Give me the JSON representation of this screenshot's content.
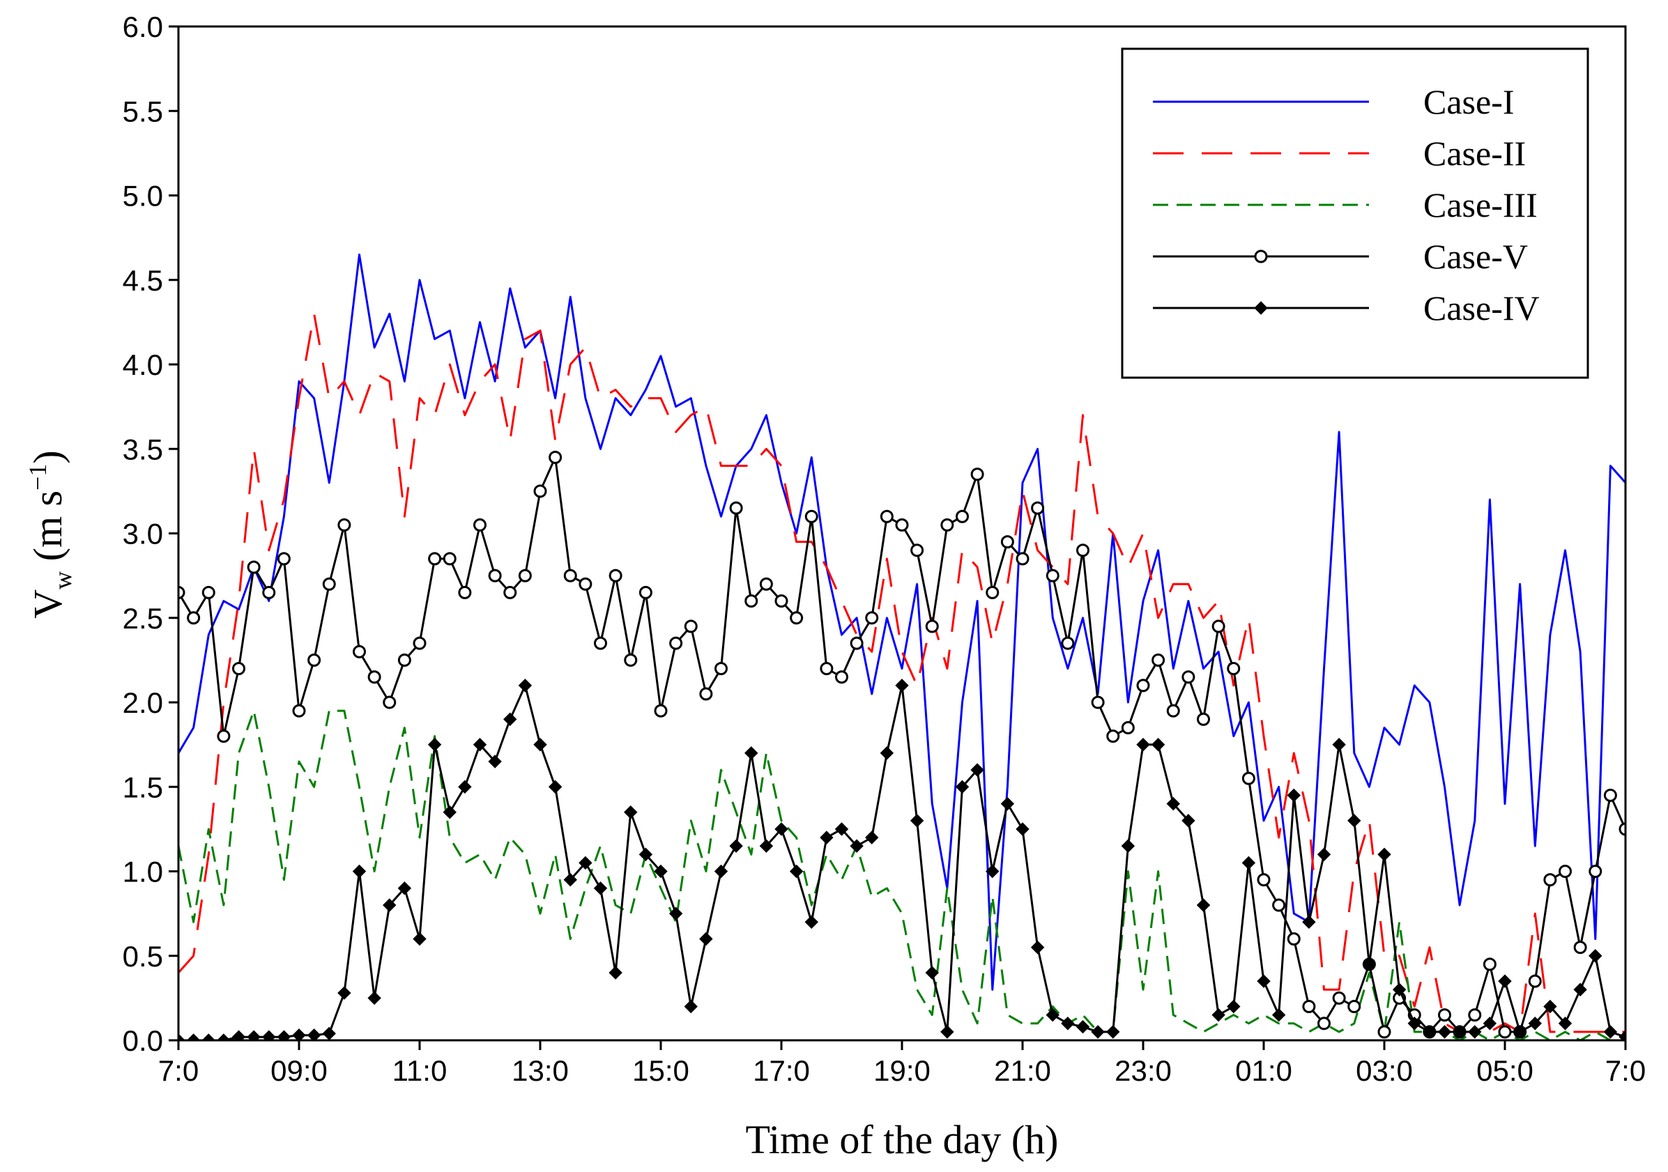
{
  "chart_data": {
    "type": "line",
    "xlabel": "Time of the day (h)",
    "ylabel": {
      "main": "V",
      "sub": "w",
      "unit": " (m s",
      "sup": "−1",
      "close": ")"
    },
    "xlim": [
      7,
      31
    ],
    "ylim": [
      0,
      6
    ],
    "xticks": [
      {
        "value": 7,
        "label": "7:0"
      },
      {
        "value": 9,
        "label": "09:0"
      },
      {
        "value": 11,
        "label": "11:0"
      },
      {
        "value": 13,
        "label": "13:0"
      },
      {
        "value": 15,
        "label": "15:0"
      },
      {
        "value": 17,
        "label": "17:0"
      },
      {
        "value": 19,
        "label": "19:0"
      },
      {
        "value": 21,
        "label": "21:0"
      },
      {
        "value": 23,
        "label": "23:0"
      },
      {
        "value": 25,
        "label": "01:0"
      },
      {
        "value": 27,
        "label": "03:0"
      },
      {
        "value": 29,
        "label": "05:0"
      },
      {
        "value": 31,
        "label": "7:0"
      }
    ],
    "yticks": [
      {
        "value": 0,
        "label": "0.0"
      },
      0.5,
      {
        "value": 1,
        "label": "1.0"
      },
      1.5,
      {
        "value": 2,
        "label": "2.0"
      },
      2.5,
      {
        "value": 3,
        "label": "3.0"
      },
      3.5,
      {
        "value": 4,
        "label": "4.0"
      },
      4.5,
      {
        "value": 5,
        "label": "5.0"
      },
      5.5,
      {
        "value": 6,
        "label": "6.0"
      }
    ],
    "grid": false,
    "legend": "upper-right",
    "x": [
      7,
      7.25,
      7.5,
      7.75,
      8,
      8.25,
      8.5,
      8.75,
      9,
      9.25,
      9.5,
      9.75,
      10,
      10.25,
      10.5,
      10.75,
      11,
      11.25,
      11.5,
      11.75,
      12,
      12.25,
      12.5,
      12.75,
      13,
      13.25,
      13.5,
      13.75,
      14,
      14.25,
      14.5,
      14.75,
      15,
      15.25,
      15.5,
      15.75,
      16,
      16.25,
      16.5,
      16.75,
      17,
      17.25,
      17.5,
      17.75,
      18,
      18.25,
      18.5,
      18.75,
      19,
      19.25,
      19.5,
      19.75,
      20,
      20.25,
      20.5,
      20.75,
      21,
      21.25,
      21.5,
      21.75,
      22,
      22.25,
      22.5,
      22.75,
      23,
      23.25,
      23.5,
      23.75,
      24,
      24.25,
      24.5,
      24.75,
      25,
      25.25,
      25.5,
      25.75,
      26,
      26.25,
      26.5,
      26.75,
      27,
      27.25,
      27.5,
      27.75,
      28,
      28.25,
      28.5,
      28.75,
      29,
      29.25,
      29.5,
      29.75,
      30,
      30.25,
      30.5,
      30.75,
      31
    ],
    "series": [
      {
        "name": "Case-I",
        "color": "#0000ff",
        "line_style": "solid",
        "marker": "none",
        "values": [
          1.7,
          1.85,
          2.4,
          2.6,
          2.55,
          2.8,
          2.6,
          3.1,
          3.9,
          3.8,
          3.3,
          3.9,
          4.65,
          4.1,
          4.3,
          3.9,
          4.5,
          4.15,
          4.2,
          3.8,
          4.25,
          3.9,
          4.45,
          4.1,
          4.2,
          3.8,
          4.4,
          3.8,
          3.5,
          3.8,
          3.7,
          3.85,
          4.05,
          3.75,
          3.8,
          3.4,
          3.1,
          3.4,
          3.5,
          3.7,
          3.3,
          3.0,
          3.45,
          2.8,
          2.4,
          2.5,
          2.05,
          2.5,
          2.2,
          2.7,
          1.4,
          0.9,
          2.0,
          2.6,
          0.3,
          1.5,
          3.3,
          3.5,
          2.5,
          2.2,
          2.5,
          2.05,
          3.0,
          2.0,
          2.6,
          2.9,
          2.2,
          2.6,
          2.2,
          2.3,
          1.8,
          2.0,
          1.3,
          1.5,
          0.75,
          0.7,
          2.2,
          3.6,
          1.7,
          1.5,
          1.85,
          1.75,
          2.1,
          2.0,
          1.5,
          0.8,
          1.3,
          3.2,
          1.4,
          2.7,
          1.15,
          2.4,
          2.9,
          2.3,
          0.6,
          3.4,
          3.3
        ]
      },
      {
        "name": "Case-II",
        "color": "#ff0000",
        "line_style": "long-dash",
        "marker": "none",
        "values": [
          0.4,
          0.5,
          1.1,
          2.0,
          2.6,
          3.5,
          2.9,
          3.2,
          3.8,
          4.3,
          3.8,
          3.9,
          3.7,
          3.95,
          3.9,
          3.1,
          3.8,
          3.7,
          4.0,
          3.7,
          3.9,
          4.0,
          3.55,
          4.15,
          4.2,
          3.55,
          4.0,
          4.1,
          3.8,
          3.85,
          3.75,
          3.8,
          3.8,
          3.6,
          3.7,
          3.75,
          3.4,
          3.4,
          3.4,
          3.5,
          3.4,
          2.95,
          2.95,
          2.8,
          2.6,
          2.4,
          2.3,
          2.85,
          2.3,
          2.1,
          2.5,
          2.2,
          2.9,
          2.8,
          2.35,
          2.7,
          3.25,
          2.9,
          2.8,
          2.7,
          3.7,
          3.1,
          3.0,
          2.8,
          3.0,
          2.5,
          2.7,
          2.7,
          2.5,
          2.6,
          2.1,
          2.5,
          1.8,
          1.2,
          1.7,
          1.3,
          0.3,
          0.3,
          1.0,
          1.3,
          0.5,
          0.5,
          0.2,
          0.55,
          0.1,
          0.05,
          0.05,
          0.05,
          0.1,
          0.05,
          0.75,
          0.05,
          0.05,
          0.05,
          0.05,
          0.05,
          0.05
        ]
      },
      {
        "name": "Case-III",
        "color": "#008000",
        "line_style": "short-dash",
        "marker": "none",
        "values": [
          1.15,
          0.7,
          1.25,
          0.8,
          1.7,
          1.95,
          1.5,
          0.95,
          1.65,
          1.5,
          1.95,
          1.95,
          1.5,
          1.0,
          1.5,
          1.85,
          1.2,
          1.8,
          1.2,
          1.05,
          1.1,
          0.95,
          1.2,
          1.1,
          0.75,
          1.1,
          0.6,
          0.9,
          1.15,
          0.8,
          0.75,
          1.1,
          0.9,
          0.7,
          1.3,
          1.0,
          1.6,
          1.35,
          1.1,
          1.7,
          1.3,
          1.2,
          0.8,
          1.1,
          0.95,
          1.15,
          0.85,
          0.9,
          0.75,
          0.3,
          0.15,
          0.9,
          0.3,
          0.1,
          0.85,
          0.15,
          0.1,
          0.1,
          0.2,
          0.1,
          0.15,
          0.05,
          0.05,
          1.0,
          0.3,
          1.0,
          0.15,
          0.1,
          0.05,
          0.1,
          0.15,
          0.1,
          0.15,
          0.1,
          0.1,
          0.05,
          0.1,
          0.05,
          0.1,
          0.4,
          0.05,
          0.7,
          0.05,
          0.05,
          0.05,
          0,
          0.05,
          0,
          0.05,
          0,
          0.05,
          0,
          0.05,
          0,
          0.05,
          0,
          0
        ]
      },
      {
        "name": "Case-V",
        "color": "#000000",
        "line_style": "solid",
        "marker": "open-circle",
        "values": [
          2.65,
          2.5,
          2.65,
          1.8,
          2.2,
          2.8,
          2.65,
          2.85,
          1.95,
          2.25,
          2.7,
          3.05,
          2.3,
          2.15,
          2.0,
          2.25,
          2.35,
          2.85,
          2.85,
          2.65,
          3.05,
          2.75,
          2.65,
          2.75,
          3.25,
          3.45,
          2.75,
          2.7,
          2.35,
          2.75,
          2.25,
          2.65,
          1.95,
          2.35,
          2.45,
          2.05,
          2.2,
          3.15,
          2.6,
          2.7,
          2.6,
          2.5,
          3.1,
          2.2,
          2.15,
          2.35,
          2.5,
          3.1,
          3.05,
          2.9,
          2.45,
          3.05,
          3.1,
          3.35,
          2.65,
          2.95,
          2.85,
          3.15,
          2.75,
          2.35,
          2.9,
          2.0,
          1.8,
          1.85,
          2.1,
          2.25,
          1.95,
          2.15,
          1.9,
          2.45,
          2.2,
          1.55,
          0.95,
          0.8,
          0.6,
          0.2,
          0.1,
          0.25,
          0.2,
          0.45,
          0.05,
          0.25,
          0.15,
          0.05,
          0.15,
          0.05,
          0.15,
          0.45,
          0.05,
          0.05,
          0.35,
          0.95,
          1.0,
          0.55,
          1.0,
          1.45,
          1.25
        ]
      },
      {
        "name": "Case-IV",
        "color": "#000000",
        "line_style": "solid",
        "marker": "diamond",
        "values": [
          0,
          0,
          0,
          0,
          0.02,
          0.02,
          0.02,
          0.02,
          0.03,
          0.03,
          0.04,
          0.28,
          1.0,
          0.25,
          0.8,
          0.9,
          0.6,
          1.75,
          1.35,
          1.5,
          1.75,
          1.65,
          1.9,
          2.1,
          1.75,
          1.5,
          0.95,
          1.05,
          0.9,
          0.4,
          1.35,
          1.1,
          1.0,
          0.75,
          0.2,
          0.6,
          1.0,
          1.15,
          1.7,
          1.15,
          1.25,
          1.0,
          0.7,
          1.2,
          1.25,
          1.15,
          1.2,
          1.7,
          2.1,
          1.3,
          0.4,
          0.05,
          1.5,
          1.6,
          1.0,
          1.4,
          1.25,
          0.55,
          0.15,
          0.1,
          0.08,
          0.05,
          0.05,
          1.15,
          1.75,
          1.75,
          1.4,
          1.3,
          0.8,
          0.15,
          0.2,
          1.05,
          0.35,
          0.15,
          1.45,
          0.7,
          1.1,
          1.75,
          1.3,
          0.45,
          1.1,
          0.3,
          0.1,
          0.05,
          0.05,
          0.05,
          0.05,
          0.1,
          0.35,
          0.05,
          0.1,
          0.2,
          0.1,
          0.3,
          0.5,
          0.05,
          0.02
        ]
      }
    ]
  }
}
